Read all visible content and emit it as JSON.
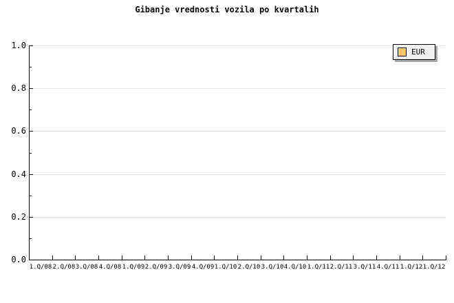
{
  "chart_data": {
    "type": "line",
    "title": "Gibanje vrednosti vozila po kvartalih",
    "categories": [
      "1.Q/08",
      "2.Q/08",
      "3.Q/08",
      "4.Q/08",
      "1.Q/09",
      "2.Q/09",
      "3.Q/09",
      "4.Q/09",
      "1.Q/10",
      "2.Q/10",
      "3.Q/10",
      "4.Q/10",
      "1.Q/11",
      "2.Q/11",
      "3.Q/11",
      "4.Q/11",
      "1.Q/12",
      "1.Q/12"
    ],
    "series": [
      {
        "name": "EUR",
        "color": "#fcc863",
        "values": []
      }
    ],
    "xlabel": "",
    "ylabel": "",
    "ylim": [
      0.0,
      1.0
    ],
    "y_major_step": 0.2,
    "y_minor_step": 0.1,
    "y_tick_labels": [
      "0.0",
      "0.2",
      "0.4",
      "0.6",
      "0.8",
      "1.0"
    ],
    "grid": "horizontal-only",
    "legend_position": "top-right",
    "colors": {
      "background": "#ffffff",
      "axis": "#000000",
      "gridline": "#e4e4e4",
      "legend_background": "#f0f0f0",
      "legend_border": "#000000",
      "legend_shadow": "#a8a8a8",
      "series_eur": "#fcc863"
    }
  }
}
